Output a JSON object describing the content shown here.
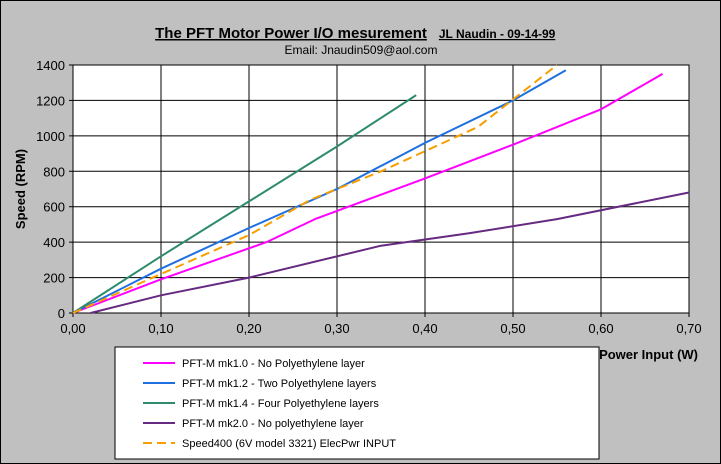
{
  "chart_data": {
    "type": "line",
    "title": "The PFT Motor Power I/O mesurement",
    "title_author": "JL Naudin  - 09-14-99",
    "subtitle": "Email: Jnaudin509@aol.com",
    "xlabel": "Power Input (W)",
    "ylabel": "Speed (RPM)",
    "xlim": [
      0,
      0.7
    ],
    "ylim": [
      0,
      1400
    ],
    "x_ticks": [
      "0,00",
      "0,10",
      "0,20",
      "0,30",
      "0,40",
      "0,50",
      "0,60",
      "0,70"
    ],
    "y_ticks": [
      "0",
      "200",
      "400",
      "600",
      "800",
      "1000",
      "1200",
      "1400"
    ],
    "grid": true,
    "legend_position": "bottom",
    "series": [
      {
        "name": "PFT-M mk1.0 - No Polyethylene layer",
        "color": "#ff00ff",
        "dash": false,
        "points": [
          [
            0,
            0
          ],
          [
            0.1,
            190
          ],
          [
            0.22,
            400
          ],
          [
            0.275,
            530
          ],
          [
            0.4,
            760
          ],
          [
            0.5,
            950
          ],
          [
            0.6,
            1150
          ],
          [
            0.67,
            1350
          ]
        ]
      },
      {
        "name": "PFT-M mk1.2 - Two Polyethylene layers",
        "color": "#1f6fe0",
        "dash": false,
        "points": [
          [
            0,
            0
          ],
          [
            0.1,
            250
          ],
          [
            0.2,
            480
          ],
          [
            0.3,
            700
          ],
          [
            0.4,
            960
          ],
          [
            0.5,
            1200
          ],
          [
            0.56,
            1370
          ]
        ]
      },
      {
        "name": "PFT-M mk1.4 - Four Polyethylene layers",
        "color": "#2e8b6e",
        "dash": false,
        "points": [
          [
            0,
            0
          ],
          [
            0.1,
            320
          ],
          [
            0.2,
            630
          ],
          [
            0.3,
            940
          ],
          [
            0.39,
            1230
          ]
        ]
      },
      {
        "name": "PFT-M mk2.0 - No polyethylene layer",
        "color": "#662a80",
        "dash": false,
        "points": [
          [
            0.02,
            0
          ],
          [
            0.1,
            100
          ],
          [
            0.2,
            200
          ],
          [
            0.35,
            380
          ],
          [
            0.45,
            450
          ],
          [
            0.55,
            530
          ],
          [
            0.7,
            680
          ]
        ]
      },
      {
        "name": "Speed400 (6V model 3321) ElecPwr INPUT",
        "color": "#f5a000",
        "dash": true,
        "points": [
          [
            0,
            0
          ],
          [
            0.1,
            220
          ],
          [
            0.2,
            440
          ],
          [
            0.27,
            640
          ],
          [
            0.35,
            800
          ],
          [
            0.46,
            1050
          ],
          [
            0.55,
            1400
          ]
        ]
      }
    ]
  }
}
